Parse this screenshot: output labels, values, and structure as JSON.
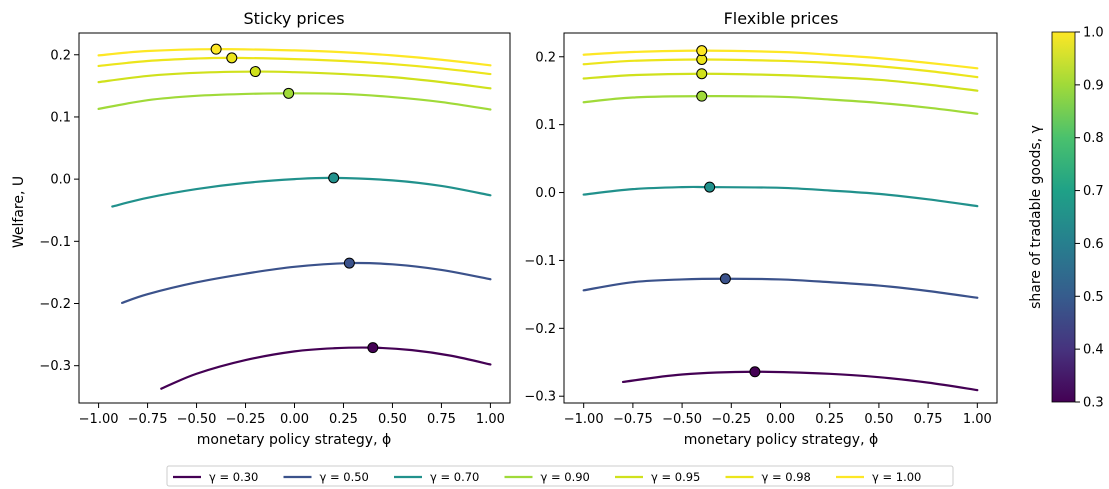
{
  "chart_data": [
    {
      "type": "line",
      "title": "Sticky prices",
      "xlabel": "monetary policy strategy, ϕ",
      "ylabel": "Welfare, U",
      "xlim": [
        -1.1,
        1.1
      ],
      "ylim": [
        -0.36,
        0.235
      ],
      "xticks": [
        -1.0,
        -0.75,
        -0.5,
        -0.25,
        0.0,
        0.25,
        0.5,
        0.75,
        1.0
      ],
      "xtick_labels": [
        "−1.00",
        "−0.75",
        "−0.50",
        "−0.25",
        "0.00",
        "0.25",
        "0.50",
        "0.75",
        "1.00"
      ],
      "yticks": [
        -0.3,
        -0.2,
        -0.1,
        0.0,
        0.1,
        0.2
      ],
      "ytick_labels": [
        "−0.3",
        "−0.2",
        "−0.1",
        "0.0",
        "0.1",
        "0.2"
      ],
      "series": [
        {
          "gamma": 0.3,
          "x_range": [
            -0.68,
            1.0
          ],
          "points": [
            [
              -0.68,
              -0.337
            ],
            [
              -0.5,
              -0.313
            ],
            [
              -0.25,
              -0.291
            ],
            [
              0.0,
              -0.277
            ],
            [
              0.2,
              -0.272
            ],
            [
              0.4,
              -0.271
            ],
            [
              0.6,
              -0.275
            ],
            [
              0.8,
              -0.284
            ],
            [
              1.0,
              -0.298
            ]
          ],
          "optimum": [
            0.4,
            -0.271
          ]
        },
        {
          "gamma": 0.5,
          "x_range": [
            -0.88,
            1.0
          ],
          "points": [
            [
              -0.88,
              -0.199
            ],
            [
              -0.75,
              -0.185
            ],
            [
              -0.5,
              -0.166
            ],
            [
              -0.25,
              -0.152
            ],
            [
              0.0,
              -0.141
            ],
            [
              0.28,
              -0.135
            ],
            [
              0.5,
              -0.137
            ],
            [
              0.75,
              -0.146
            ],
            [
              1.0,
              -0.161
            ]
          ],
          "optimum": [
            0.28,
            -0.135
          ]
        },
        {
          "gamma": 0.7,
          "x_range": [
            -0.93,
            1.0
          ],
          "points": [
            [
              -0.93,
              -0.044
            ],
            [
              -0.75,
              -0.03
            ],
            [
              -0.5,
              -0.016
            ],
            [
              -0.25,
              -0.006
            ],
            [
              0.0,
              0.0
            ],
            [
              0.2,
              0.002
            ],
            [
              0.5,
              -0.002
            ],
            [
              0.75,
              -0.011
            ],
            [
              1.0,
              -0.026
            ]
          ],
          "optimum": [
            0.2,
            0.002
          ]
        },
        {
          "gamma": 0.9,
          "x_range": [
            -1.0,
            1.0
          ],
          "points": [
            [
              -1.0,
              0.113
            ],
            [
              -0.75,
              0.127
            ],
            [
              -0.5,
              0.134
            ],
            [
              -0.25,
              0.137
            ],
            [
              -0.03,
              0.138
            ],
            [
              0.25,
              0.137
            ],
            [
              0.5,
              0.132
            ],
            [
              0.75,
              0.124
            ],
            [
              1.0,
              0.112
            ]
          ],
          "optimum": [
            -0.03,
            0.138
          ]
        },
        {
          "gamma": 0.95,
          "x_range": [
            -1.0,
            1.0
          ],
          "points": [
            [
              -1.0,
              0.156
            ],
            [
              -0.75,
              0.166
            ],
            [
              -0.5,
              0.171
            ],
            [
              -0.2,
              0.173
            ],
            [
              0.0,
              0.172
            ],
            [
              0.25,
              0.169
            ],
            [
              0.5,
              0.164
            ],
            [
              0.75,
              0.156
            ],
            [
              1.0,
              0.146
            ]
          ],
          "optimum": [
            -0.2,
            0.173
          ]
        },
        {
          "gamma": 0.98,
          "x_range": [
            -1.0,
            1.0
          ],
          "points": [
            [
              -1.0,
              0.182
            ],
            [
              -0.75,
              0.19
            ],
            [
              -0.5,
              0.194
            ],
            [
              -0.32,
              0.195
            ],
            [
              0.0,
              0.193
            ],
            [
              0.25,
              0.19
            ],
            [
              0.5,
              0.185
            ],
            [
              0.75,
              0.178
            ],
            [
              1.0,
              0.169
            ]
          ],
          "optimum": [
            -0.32,
            0.195
          ]
        },
        {
          "gamma": 1.0,
          "x_range": [
            -1.0,
            1.0
          ],
          "points": [
            [
              -1.0,
              0.199
            ],
            [
              -0.75,
              0.206
            ],
            [
              -0.4,
              0.209
            ],
            [
              0.0,
              0.207
            ],
            [
              0.25,
              0.204
            ],
            [
              0.5,
              0.199
            ],
            [
              0.75,
              0.192
            ],
            [
              1.0,
              0.183
            ]
          ],
          "optimum": [
            -0.4,
            0.209
          ]
        }
      ]
    },
    {
      "type": "line",
      "title": "Flexible prices",
      "xlabel": "monetary policy strategy, ϕ",
      "ylabel": "",
      "xlim": [
        -1.1,
        1.1
      ],
      "ylim": [
        -0.31,
        0.235
      ],
      "xticks": [
        -1.0,
        -0.75,
        -0.5,
        -0.25,
        0.0,
        0.25,
        0.5,
        0.75,
        1.0
      ],
      "xtick_labels": [
        "−1.00",
        "−0.75",
        "−0.50",
        "−0.25",
        "0.00",
        "0.25",
        "0.50",
        "0.75",
        "1.00"
      ],
      "yticks": [
        -0.3,
        -0.2,
        -0.1,
        0.0,
        0.1,
        0.2
      ],
      "ytick_labels": [
        "−0.3",
        "−0.2",
        "−0.1",
        "0.0",
        "0.1",
        "0.2"
      ],
      "series": [
        {
          "gamma": 0.3,
          "x_range": [
            -0.8,
            1.0
          ],
          "points": [
            [
              -0.8,
              -0.279
            ],
            [
              -0.5,
              -0.268
            ],
            [
              -0.13,
              -0.264
            ],
            [
              0.25,
              -0.267
            ],
            [
              0.5,
              -0.272
            ],
            [
              0.75,
              -0.28
            ],
            [
              1.0,
              -0.291
            ]
          ],
          "optimum": [
            -0.13,
            -0.264
          ]
        },
        {
          "gamma": 0.5,
          "x_range": [
            -1.0,
            1.0
          ],
          "points": [
            [
              -1.0,
              -0.144
            ],
            [
              -0.75,
              -0.132
            ],
            [
              -0.5,
              -0.128
            ],
            [
              -0.28,
              -0.127
            ],
            [
              0.0,
              -0.128
            ],
            [
              0.25,
              -0.132
            ],
            [
              0.5,
              -0.137
            ],
            [
              0.75,
              -0.145
            ],
            [
              1.0,
              -0.155
            ]
          ],
          "optimum": [
            -0.28,
            -0.127
          ]
        },
        {
          "gamma": 0.7,
          "x_range": [
            -1.0,
            1.0
          ],
          "points": [
            [
              -1.0,
              -0.003
            ],
            [
              -0.75,
              0.005
            ],
            [
              -0.5,
              0.008
            ],
            [
              -0.36,
              0.008
            ],
            [
              0.0,
              0.007
            ],
            [
              0.25,
              0.003
            ],
            [
              0.5,
              -0.002
            ],
            [
              0.75,
              -0.01
            ],
            [
              1.0,
              -0.02
            ]
          ],
          "optimum": [
            -0.36,
            0.008
          ]
        },
        {
          "gamma": 0.9,
          "x_range": [
            -1.0,
            1.0
          ],
          "points": [
            [
              -1.0,
              0.133
            ],
            [
              -0.75,
              0.14
            ],
            [
              -0.4,
              0.142
            ],
            [
              0.0,
              0.141
            ],
            [
              0.25,
              0.137
            ],
            [
              0.5,
              0.132
            ],
            [
              0.75,
              0.125
            ],
            [
              1.0,
              0.116
            ]
          ],
          "optimum": [
            -0.4,
            0.142
          ]
        },
        {
          "gamma": 0.95,
          "x_range": [
            -1.0,
            1.0
          ],
          "points": [
            [
              -1.0,
              0.168
            ],
            [
              -0.75,
              0.173
            ],
            [
              -0.4,
              0.175
            ],
            [
              0.0,
              0.173
            ],
            [
              0.25,
              0.17
            ],
            [
              0.5,
              0.166
            ],
            [
              0.75,
              0.159
            ],
            [
              1.0,
              0.15
            ]
          ],
          "optimum": [
            -0.4,
            0.175
          ]
        },
        {
          "gamma": 0.98,
          "x_range": [
            -1.0,
            1.0
          ],
          "points": [
            [
              -1.0,
              0.189
            ],
            [
              -0.75,
              0.194
            ],
            [
              -0.4,
              0.196
            ],
            [
              0.0,
              0.194
            ],
            [
              0.25,
              0.191
            ],
            [
              0.5,
              0.186
            ],
            [
              0.75,
              0.179
            ],
            [
              1.0,
              0.17
            ]
          ],
          "optimum": [
            -0.4,
            0.196
          ]
        },
        {
          "gamma": 1.0,
          "x_range": [
            -1.0,
            1.0
          ],
          "points": [
            [
              -1.0,
              0.203
            ],
            [
              -0.75,
              0.207
            ],
            [
              -0.4,
              0.209
            ],
            [
              0.0,
              0.207
            ],
            [
              0.25,
              0.203
            ],
            [
              0.5,
              0.198
            ],
            [
              0.75,
              0.191
            ],
            [
              1.0,
              0.183
            ]
          ],
          "optimum": [
            -0.4,
            0.209
          ]
        }
      ]
    }
  ],
  "colorbar": {
    "label": "share of tradable goods, γ",
    "min": 0.3,
    "max": 1.0,
    "ticks": [
      0.3,
      0.4,
      0.5,
      0.6,
      0.7,
      0.8,
      0.9,
      1.0
    ],
    "tick_labels": [
      "0.3",
      "0.4",
      "0.5",
      "0.6",
      "0.7",
      "0.8",
      "0.9",
      "1.0"
    ],
    "colormap": "viridis"
  },
  "legend": {
    "placement": "bottom-center",
    "entries": [
      {
        "label": "γ = 0.30",
        "color": "#440154"
      },
      {
        "label": "γ = 0.50",
        "color": "#3b528b"
      },
      {
        "label": "γ = 0.70",
        "color": "#21918c"
      },
      {
        "label": "γ = 0.90",
        "color": "#a0da39"
      },
      {
        "label": "γ = 0.95",
        "color": "#d0e11c"
      },
      {
        "label": "γ = 0.98",
        "color": "#ece51b"
      },
      {
        "label": "γ = 1.00",
        "color": "#fde725"
      }
    ]
  },
  "series_colors": [
    "#440154",
    "#3b528b",
    "#21918c",
    "#a0da39",
    "#d0e11c",
    "#ece51b",
    "#fde725"
  ],
  "marker_colors": [
    "#440154",
    "#3b528b",
    "#21918c",
    "#a0da39",
    "#d0e11c",
    "#ece51b",
    "#fde725"
  ]
}
